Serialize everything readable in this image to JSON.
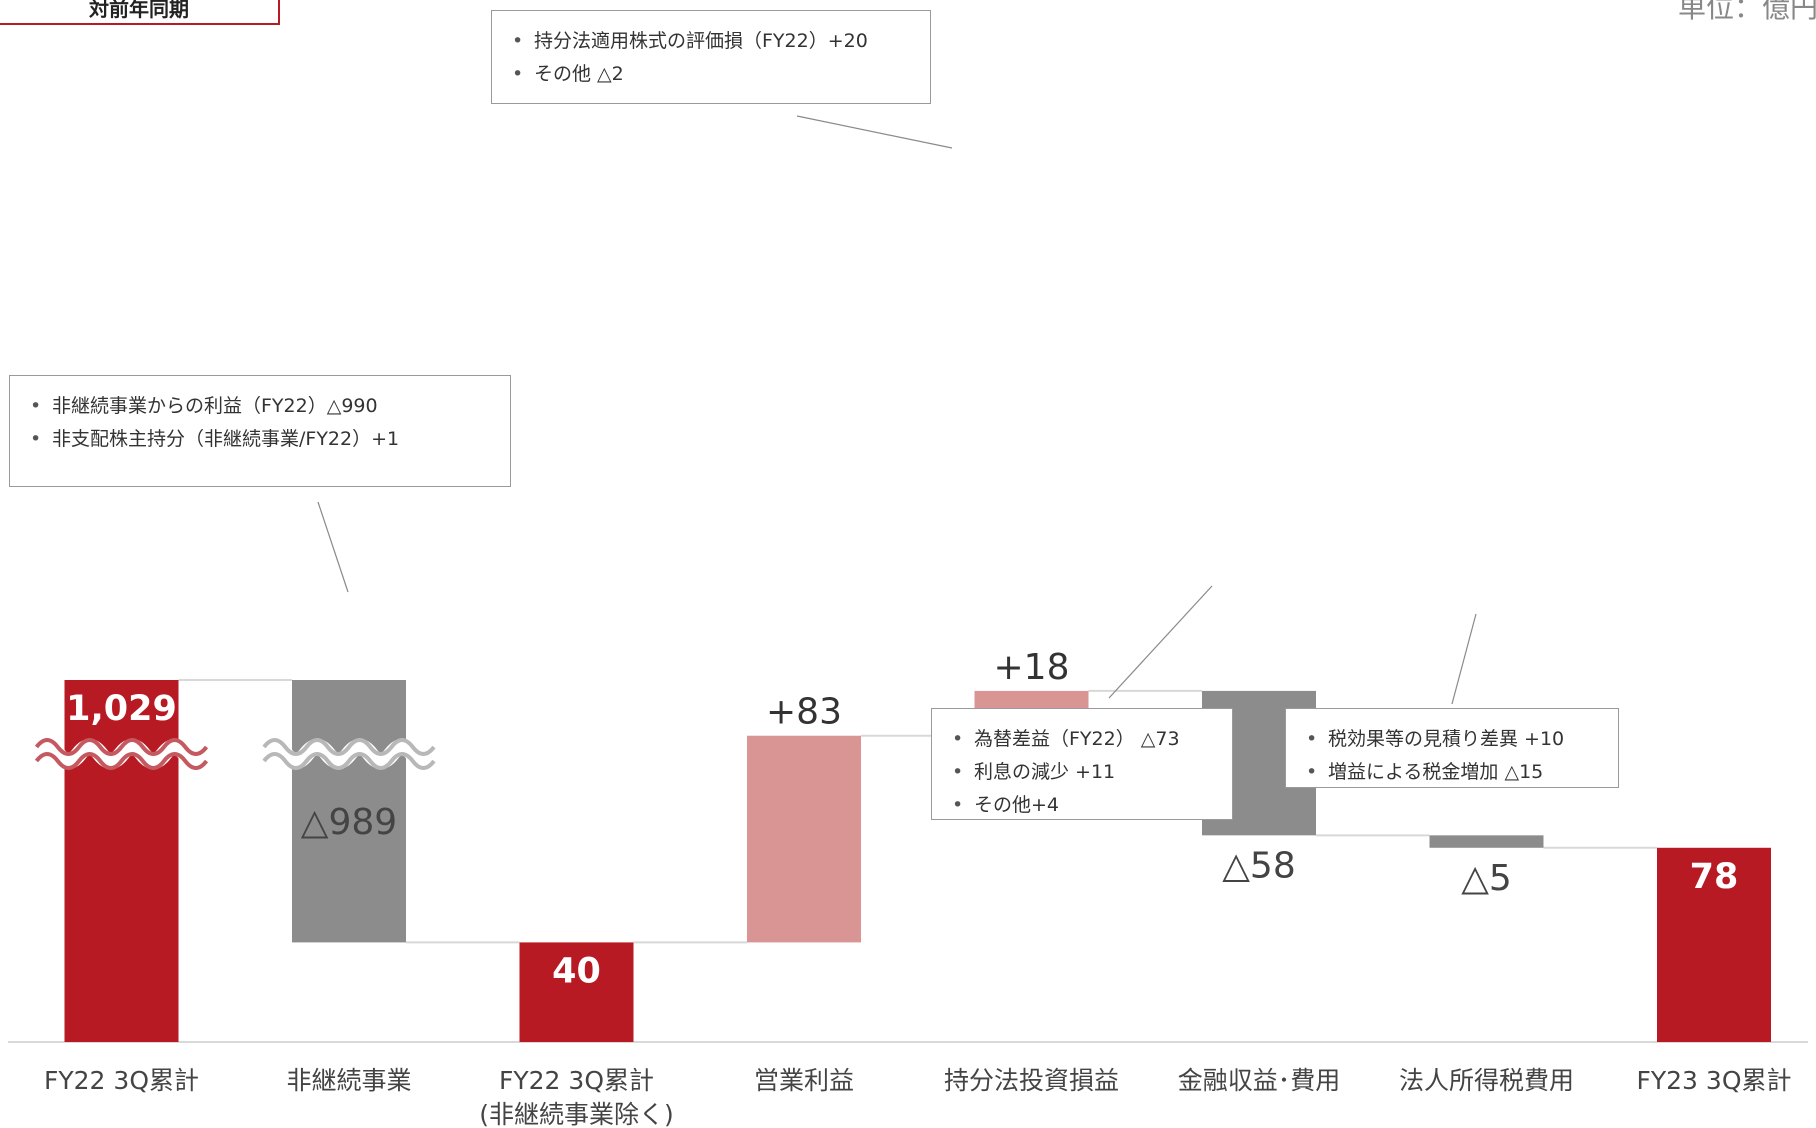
{
  "badge": "対前年同期",
  "unit_label": "単位：億円",
  "chart_data": {
    "type": "bar",
    "subtype": "waterfall",
    "title": "",
    "xlabel": "",
    "ylabel": "",
    "categories": [
      "FY22 3Q累計",
      "非継続事業",
      "FY22 3Q累計\n(非継続事業除く)",
      "営業利益",
      "持分法投資損益",
      "金融収益･費用",
      "法人所得税費用",
      "FY23 3Q累計"
    ],
    "values": [
      1029,
      -989,
      40,
      83,
      18,
      -58,
      -5,
      78
    ],
    "kinds": [
      "total",
      "decrease",
      "total",
      "increase",
      "increase",
      "decrease",
      "decrease",
      "total"
    ],
    "data_labels": [
      "1,029",
      "△989",
      "40",
      "+83",
      "+18",
      "△58",
      "△5",
      "78"
    ],
    "axis_break": true,
    "colors": {
      "total": "#b71a23",
      "increase": "#d99594",
      "decrease": "#8c8c8c",
      "connector": "#d8d8d8",
      "axis": "#d9d9d9"
    }
  },
  "notes": [
    {
      "items": [
        "持分法適用株式の評価損（FY22）+20",
        "その他 △2"
      ]
    },
    {
      "items": [
        "非継続事業からの利益（FY22）△990",
        "非支配株主持分（非継続事業/FY22）+1"
      ]
    },
    {
      "items": [
        "為替差益（FY22） △73",
        "利息の減少 +11",
        "その他+4"
      ]
    },
    {
      "items": [
        "税効果等の見積り差異 +10",
        "増益による税金増加 △15"
      ]
    }
  ]
}
